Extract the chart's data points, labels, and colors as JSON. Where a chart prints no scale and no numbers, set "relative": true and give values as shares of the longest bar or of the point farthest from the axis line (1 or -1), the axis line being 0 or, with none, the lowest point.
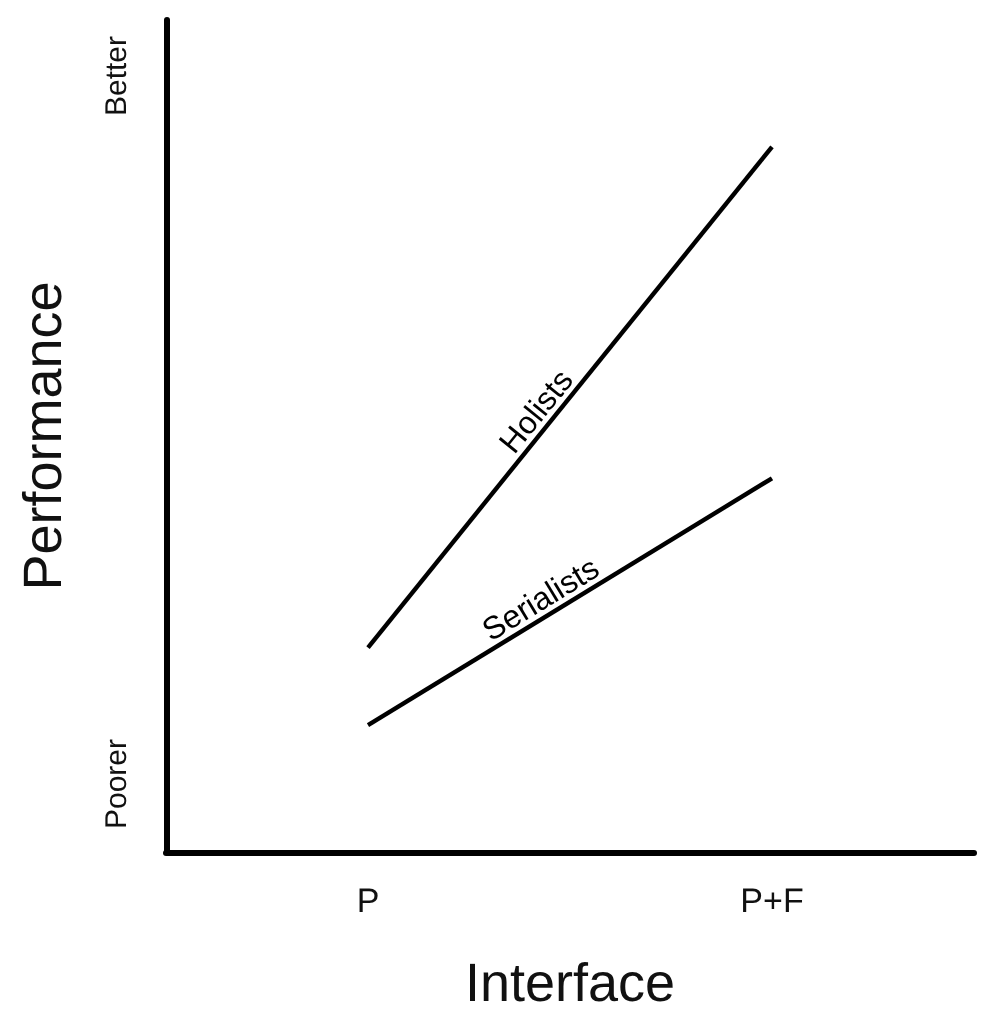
{
  "chart_data": {
    "type": "line",
    "relative": true,
    "xlabel": "Interface",
    "ylabel": "Performance",
    "categories": [
      "P",
      "P+F"
    ],
    "marker": "none",
    "annotations": [
      "Poorer",
      "Better"
    ],
    "series": [
      {
        "name": "Holists",
        "color": "#000000",
        "values": [
          0.29,
          1
        ]
      },
      {
        "name": "Serialists",
        "color": "#000000",
        "values": [
          0.18,
          0.53
        ]
      }
    ]
  }
}
